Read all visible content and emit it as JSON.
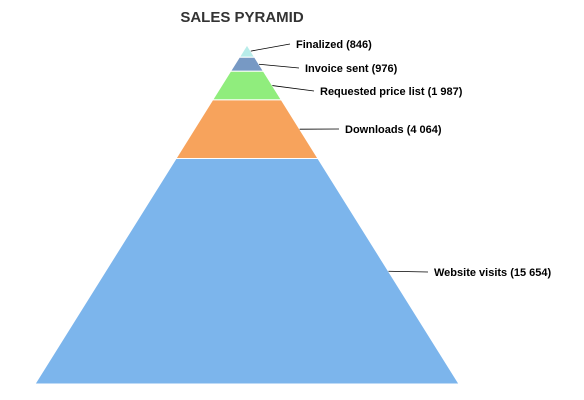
{
  "chart_data": {
    "type": "pyramid",
    "title": "SALES PYRAMID",
    "categories": [
      "Finalized",
      "Invoice sent",
      "Requested price list",
      "Downloads",
      "Website visits"
    ],
    "values": [
      846,
      976,
      1987,
      4064,
      15654
    ],
    "labels": [
      "Finalized (846)",
      "Invoice sent (976)",
      "Requested price list (1 987)",
      "Downloads (4 064)",
      "Website visits (15 654)"
    ],
    "colors": [
      "#b7ece9",
      "#7799c4",
      "#90ed7d",
      "#f7a35c",
      "#7cb5ec"
    ]
  }
}
